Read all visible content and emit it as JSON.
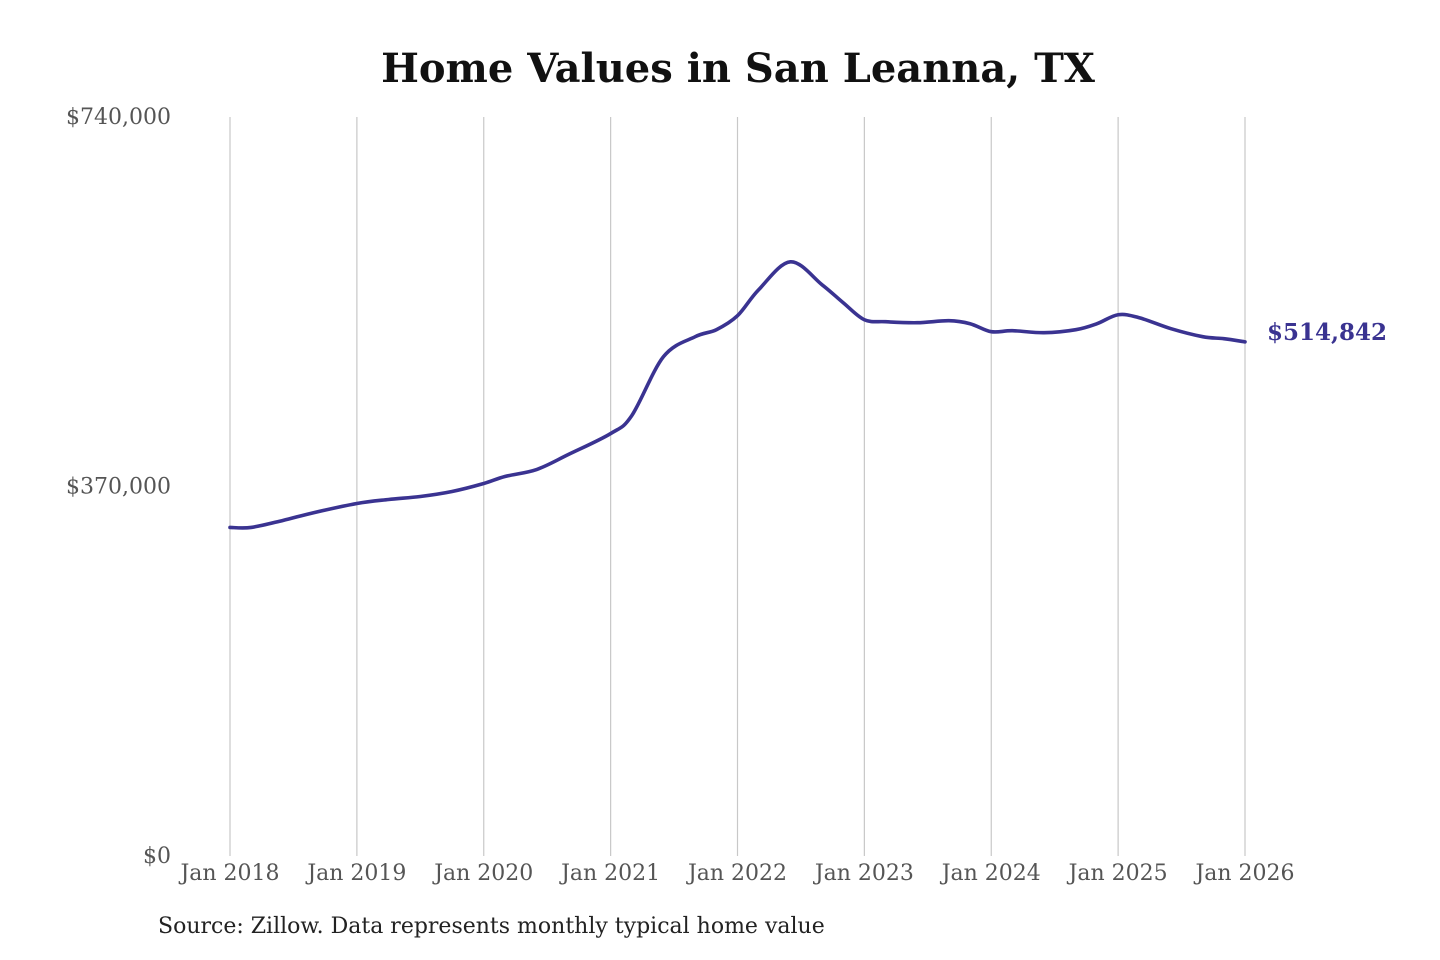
{
  "chart_data": {
    "type": "line",
    "title": "Home Values in San Leanna, TX",
    "xlabel": "",
    "ylabel": "",
    "ylim": [
      0,
      740000
    ],
    "yticks": [
      0,
      370000,
      740000
    ],
    "ytick_labels": [
      "$0",
      "$370,000",
      "$740,000"
    ],
    "xticks": [
      "2018-01",
      "2019-01",
      "2020-01",
      "2021-01",
      "2022-01",
      "2023-01",
      "2024-01",
      "2025-01",
      "2026-01"
    ],
    "xtick_labels": [
      "Jan 2018",
      "Jan 2019",
      "Jan 2020",
      "Jan 2021",
      "Jan 2022",
      "Jan 2023",
      "Jan 2024",
      "Jan 2025",
      "Jan 2026"
    ],
    "grid": {
      "vertical": true,
      "horizontal": false
    },
    "line_color": "#3a3391",
    "end_label": "$514,842",
    "series": [
      {
        "x": [
          "2018-01",
          "2018-03",
          "2018-06",
          "2018-09",
          "2019-01",
          "2019-04",
          "2019-07",
          "2019-10",
          "2020-01",
          "2020-03",
          "2020-06",
          "2020-09",
          "2021-01",
          "2021-03",
          "2021-06",
          "2021-09",
          "2021-11",
          "2022-01",
          "2022-03",
          "2022-06",
          "2022-09",
          "2022-11",
          "2023-01",
          "2023-03",
          "2023-06",
          "2023-09",
          "2023-11",
          "2024-01",
          "2024-03",
          "2024-06",
          "2024-09",
          "2024-11",
          "2025-01",
          "2025-03",
          "2025-06",
          "2025-09",
          "2025-11",
          "2026-01"
        ],
        "y": [
          329000,
          329000,
          336000,
          344000,
          353000,
          357000,
          360000,
          365000,
          373000,
          380000,
          387000,
          402000,
          423000,
          441000,
          500000,
          520000,
          527000,
          541000,
          567000,
          595000,
          572000,
          554000,
          537000,
          535000,
          534000,
          536000,
          533000,
          525000,
          526000,
          524000,
          527000,
          533000,
          542000,
          539000,
          528000,
          520000,
          518000,
          514842
        ]
      }
    ],
    "source": "Source: Zillow. Data represents monthly typical home value"
  }
}
